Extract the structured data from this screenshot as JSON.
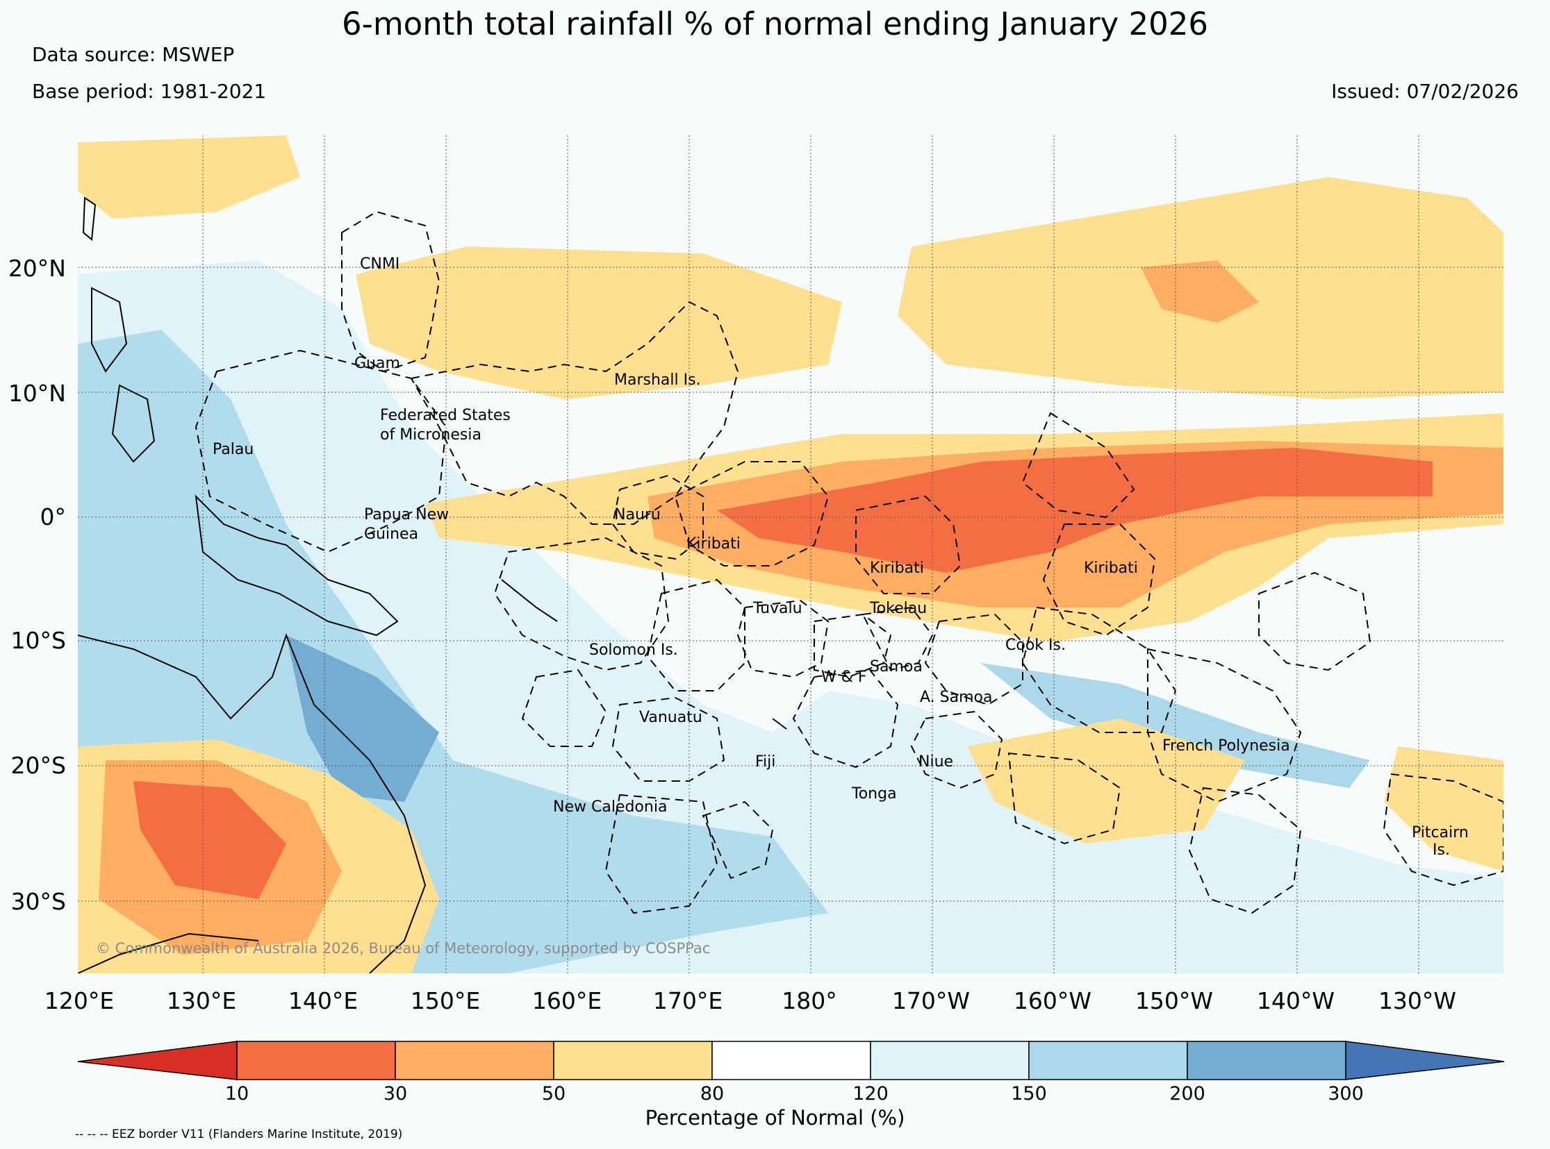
{
  "title": "6-month total rainfall % of normal ending January 2026",
  "data_source": "Data source: MSWEP",
  "base_period": "Base period: 1981-2021",
  "issued": "Issued: 07/02/2026",
  "copyright": "© Commonwealth of Australia 2026, Bureau of Meteorology, supported by COSPPac",
  "eez_note": "-- -- -- EEZ border V11 (Flanders Marine Institute, 2019)",
  "latitudes": [
    "20°N",
    "10°N",
    "0°",
    "10°S",
    "20°S",
    "30°S"
  ],
  "longitudes": [
    "120°E",
    "130°E",
    "140°E",
    "150°E",
    "160°E",
    "170°E",
    "180°",
    "170°W",
    "160°W",
    "150°W",
    "140°W",
    "130°W"
  ],
  "places": [
    {
      "name": "CNMI"
    },
    {
      "name": "Guam"
    },
    {
      "name": "Marshall Is."
    },
    {
      "name": "Federated States"
    },
    {
      "name": "of Micronesia"
    },
    {
      "name": "Palau"
    },
    {
      "name": "Papua New"
    },
    {
      "name": "Guinea"
    },
    {
      "name": "Nauru"
    },
    {
      "name": "Kiribati"
    },
    {
      "name": "Kiribati"
    },
    {
      "name": "Kiribati"
    },
    {
      "name": "Tuvalu"
    },
    {
      "name": "Tokelau"
    },
    {
      "name": "Solomon Is."
    },
    {
      "name": "Cook Is."
    },
    {
      "name": "Samoa"
    },
    {
      "name": "W & F"
    },
    {
      "name": "A. Samoa"
    },
    {
      "name": "Vanuatu"
    },
    {
      "name": "French Polynesia"
    },
    {
      "name": "Fiji"
    },
    {
      "name": "Niue"
    },
    {
      "name": "Tonga"
    },
    {
      "name": "New Caledonia"
    },
    {
      "name": "Pitcairn"
    },
    {
      "name": "Is."
    }
  ],
  "colorbar": {
    "label": "Percentage of Normal (%)",
    "ticks": [
      "10",
      "30",
      "50",
      "80",
      "120",
      "150",
      "200",
      "300"
    ],
    "colors": [
      "#d73027",
      "#f46d43",
      "#fdae61",
      "#fee090",
      "#ffffff",
      "#e0f3f8",
      "#abd9e9",
      "#74add1",
      "#4575b4"
    ]
  }
}
